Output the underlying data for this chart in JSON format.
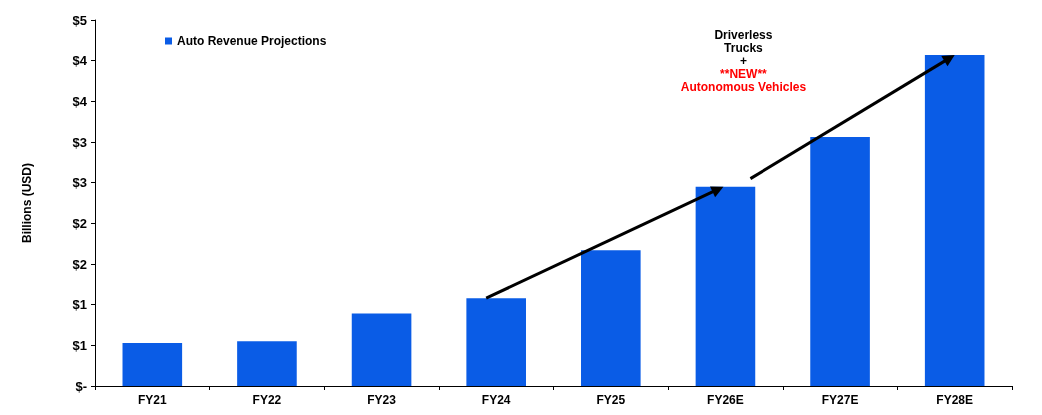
{
  "chart_data": {
    "type": "bar",
    "ylabel": "Billions (USD)",
    "categories": [
      "FY21",
      "FY22",
      "FY23",
      "FY24",
      "FY25",
      "FY26E",
      "FY27E",
      "FY28E"
    ],
    "series": [
      {
        "name": "Auto Revenue Projections",
        "color": "#0a5ce6",
        "values": [
          0.53,
          0.55,
          0.89,
          1.08,
          1.67,
          2.45,
          3.06,
          4.07
        ]
      }
    ],
    "ylim": [
      0,
      4.5
    ],
    "yticks": [
      {
        "value": 0,
        "label": "$-"
      },
      {
        "value": 0.5,
        "label": "$1"
      },
      {
        "value": 1,
        "label": "$1"
      },
      {
        "value": 1.5,
        "label": "$2"
      },
      {
        "value": 2,
        "label": "$2"
      },
      {
        "value": 2.5,
        "label": "$3"
      },
      {
        "value": 3,
        "label": "$3"
      },
      {
        "value": 3.5,
        "label": "$4"
      },
      {
        "value": 4,
        "label": "$4"
      },
      {
        "value": 4.5,
        "label": "$5"
      }
    ],
    "annotations": [
      "Driverless\nTrucks\n+",
      "**NEW**\nAutonomous Vehicles"
    ],
    "legend": "top left",
    "grid": false
  }
}
